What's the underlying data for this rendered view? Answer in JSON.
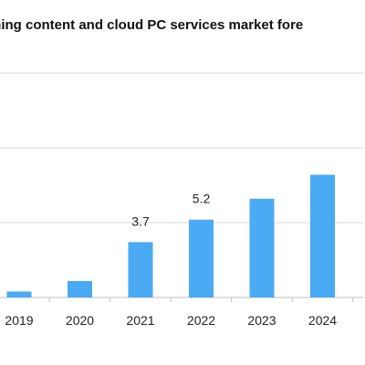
{
  "chart_data": {
    "type": "bar",
    "title": "ming content and cloud PC services market fore",
    "categories": [
      "2019",
      "2020",
      "2021",
      "2022",
      "2023",
      "2024"
    ],
    "values": [
      0.4,
      1.1,
      3.7,
      5.2,
      6.6,
      8.2
    ],
    "data_labels": [
      "",
      "",
      "3.7",
      "5.2",
      "",
      ""
    ],
    "ylim": [
      0,
      15
    ],
    "grid": "horizontal",
    "bar_color": "#4aaaf4",
    "grid_color": "#d9d9d9",
    "axis_color": "#bfbfbf"
  }
}
